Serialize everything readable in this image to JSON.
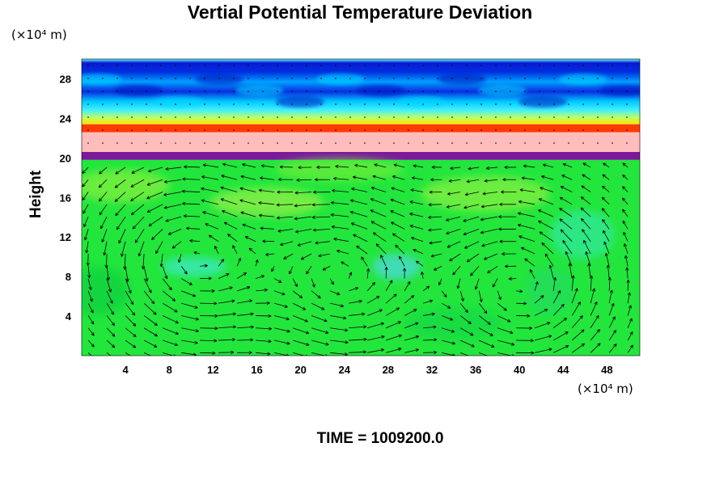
{
  "chart_data": {
    "type": "heatmap",
    "title": "Vertial Potential Temperature Deviation",
    "xlabel": "",
    "ylabel": "Height",
    "x_unit": "(×10⁴ m)",
    "y_unit": "(×10⁴ m)",
    "xlim": [
      0,
      51
    ],
    "ylim": [
      0,
      30
    ],
    "x_ticks": [
      4,
      8,
      12,
      16,
      20,
      24,
      28,
      32,
      36,
      40,
      44,
      48
    ],
    "y_ticks": [
      4,
      8,
      12,
      16,
      20,
      24,
      28
    ],
    "grid": false,
    "overlay": "velocity vector field (arrows)",
    "bands": [
      {
        "y_from": 0,
        "y_to": 19.8,
        "color": "#22e63c"
      },
      {
        "y_from": 19.8,
        "y_to": 20.6,
        "color": "#7a1a9a"
      },
      {
        "y_from": 20.6,
        "y_to": 22.6,
        "color": "#ffbcbc"
      },
      {
        "y_from": 22.6,
        "y_to": 23.4,
        "color": "#ff3a00"
      },
      {
        "y_from": 23.4,
        "y_to": 30,
        "color": "#0060ff"
      }
    ],
    "cells": [
      {
        "center": [
          10,
          10
        ],
        "direction": "counterclockwise"
      },
      {
        "center": [
          24,
          8
        ],
        "direction": "counterclockwise"
      },
      {
        "center": [
          40,
          7
        ],
        "direction": "counterclockwise"
      }
    ]
  },
  "footer": {
    "time_label": "TIME = 1009200.0"
  }
}
